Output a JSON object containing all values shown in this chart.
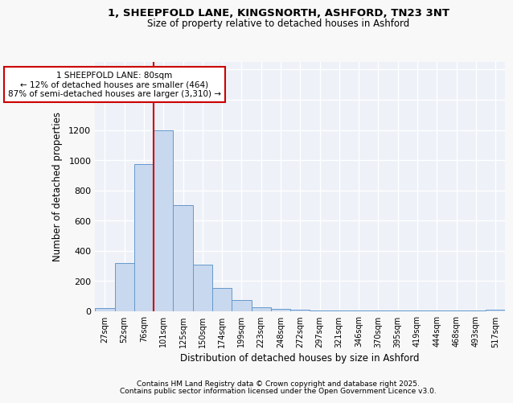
{
  "title1": "1, SHEEPFOLD LANE, KINGSNORTH, ASHFORD, TN23 3NT",
  "title2": "Size of property relative to detached houses in Ashford",
  "xlabel": "Distribution of detached houses by size in Ashford",
  "ylabel": "Number of detached properties",
  "categories": [
    "27sqm",
    "52sqm",
    "76sqm",
    "101sqm",
    "125sqm",
    "150sqm",
    "174sqm",
    "199sqm",
    "223sqm",
    "248sqm",
    "272sqm",
    "297sqm",
    "321sqm",
    "346sqm",
    "370sqm",
    "395sqm",
    "419sqm",
    "444sqm",
    "468sqm",
    "493sqm",
    "517sqm"
  ],
  "values": [
    20,
    320,
    975,
    1200,
    700,
    310,
    155,
    75,
    25,
    15,
    10,
    5,
    5,
    3,
    3,
    3,
    3,
    3,
    3,
    3,
    8
  ],
  "bar_color": "#c8d8ee",
  "bar_edge_color": "#6699cc",
  "vline_x_index": 2.5,
  "vline_color": "#cc0000",
  "annotation_text": "1 SHEEPFOLD LANE: 80sqm\n← 12% of detached houses are smaller (464)\n87% of semi-detached houses are larger (3,310) →",
  "annotation_box_color": "#ffffff",
  "annotation_box_edge": "#cc0000",
  "ylim": [
    0,
    1650
  ],
  "yticks": [
    0,
    200,
    400,
    600,
    800,
    1000,
    1200,
    1400,
    1600
  ],
  "bg_color": "#eef2f8",
  "grid_color": "#ffffff",
  "footer1": "Contains HM Land Registry data © Crown copyright and database right 2025.",
  "footer2": "Contains public sector information licensed under the Open Government Licence v3.0."
}
